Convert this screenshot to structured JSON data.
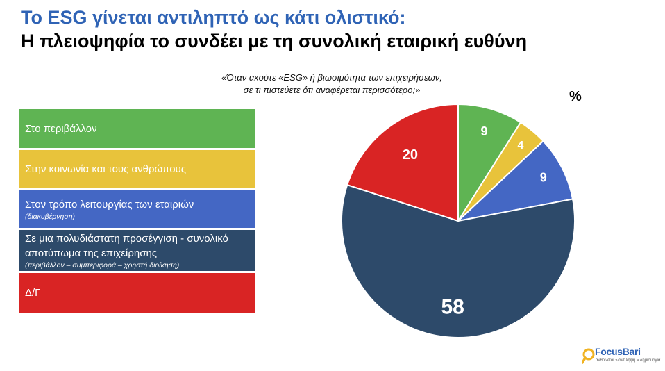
{
  "header": {
    "title_line1": "Το ESG γίνεται αντιληπτό ως κάτι ολιστικό:",
    "title_line2": "Η πλειοψηφία το συνδέει με τη συνολική εταιρική ευθύνη"
  },
  "question": {
    "line1": "«Όταν ακούτε «ESG» ή βιωσιμότητα των επιχειρήσεων,",
    "line2": "σε τι πιστεύετε ότι αναφέρεται περισσότερο;»"
  },
  "unit": "%",
  "legend": [
    {
      "label": "Στο περιβάλλον",
      "sub": "",
      "color": "#5fb453"
    },
    {
      "label": "Στην κοινωνία και τους ανθρώπους",
      "sub": "",
      "color": "#e8c33b"
    },
    {
      "label": "Στον τρόπο λειτουργίας των εταιριών",
      "sub": "(διακυβέρνηση)",
      "color": "#4467c4"
    },
    {
      "label": "Σε μια πολυδιάστατη προσέγγιση - συνολικό αποτύπωμα της επιχείρησης",
      "sub": "(περιβάλλον – συμπεριφορά – χρηστή διοίκηση)",
      "color": "#2d4a6a"
    },
    {
      "label": "Δ/Γ",
      "sub": "",
      "color": "#d92424"
    }
  ],
  "chart_data": {
    "type": "pie",
    "title": "",
    "unit": "%",
    "slices": [
      {
        "label": "Στο περιβάλλον",
        "value": 9,
        "color": "#5fb453"
      },
      {
        "label": "Στην κοινωνία και τους ανθρώπους",
        "value": 4,
        "color": "#e8c33b"
      },
      {
        "label": "Στον τρόπο λειτουργίας των εταιριών (διακυβέρνηση)",
        "value": 9,
        "color": "#4467c4"
      },
      {
        "label": "Σε μια πολυδιάστατη προσέγγιση - συνολικό αποτύπωμα της επιχείρησης",
        "value": 58,
        "color": "#2d4a6a"
      },
      {
        "label": "Δ/Γ",
        "value": 20,
        "color": "#d92424"
      }
    ],
    "legend_position": "left"
  },
  "logo": {
    "name": "FocusBari",
    "tagline": "άνθρωποι » αντίληψη » δημιουργία",
    "color": "#2f63b5"
  }
}
